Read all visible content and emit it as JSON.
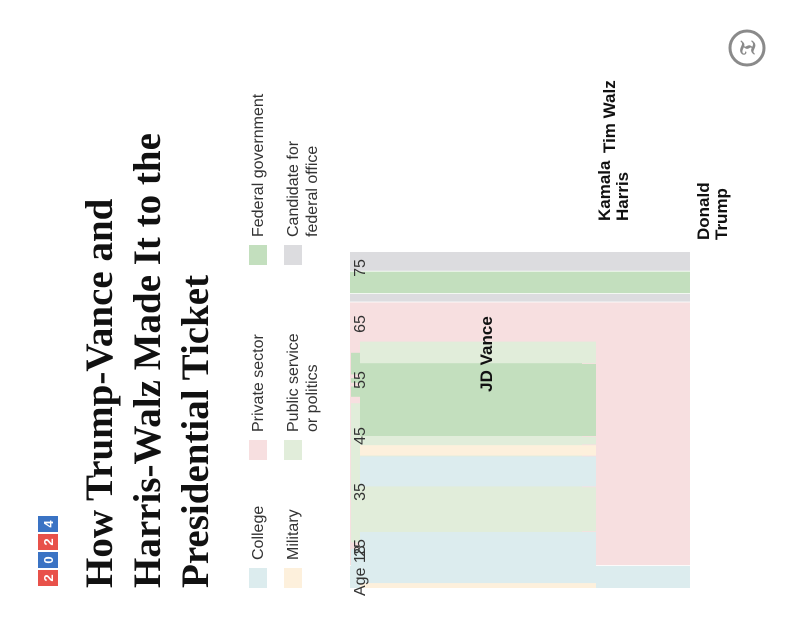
{
  "badge": {
    "digits": [
      "2",
      "0",
      "2",
      "4"
    ],
    "colors": [
      "#e8514a",
      "#3a73c4",
      "#e8514a",
      "#3a73c4"
    ]
  },
  "logo": {
    "icon": "nyt-logo-icon"
  },
  "title_lines": [
    "How Trump-Vance and",
    "Harris-Walz Made It to the",
    "Presidential Ticket"
  ],
  "legend": [
    {
      "key": "college",
      "lines": [
        "College"
      ],
      "color": "#dcecee"
    },
    {
      "key": "military",
      "lines": [
        "Military"
      ],
      "color": "#fdf0dc"
    },
    {
      "key": "private",
      "lines": [
        "Private sector"
      ],
      "color": "#f7dfe0"
    },
    {
      "key": "public",
      "lines": [
        "Public service",
        "or politics"
      ],
      "color": "#e1edda"
    },
    {
      "key": "federal",
      "lines": [
        "Federal government"
      ],
      "color": "#c3dfbe"
    },
    {
      "key": "candidate",
      "lines": [
        "Candidate for",
        "federal office"
      ],
      "color": "#dcdcdf"
    }
  ],
  "chart_data": {
    "type": "timeline",
    "title": "How Trump-Vance and Harris-Walz Made It to the Presidential Ticket",
    "axis": {
      "label_prefix": "Age",
      "ticks": [
        18,
        25,
        35,
        45,
        55,
        65,
        75
      ],
      "range": [
        18,
        78
      ]
    },
    "people": [
      {
        "name": "Donald Trump",
        "label_lines": [
          "Donald",
          "Trump"
        ],
        "segments": [
          {
            "start": 18,
            "end": 22,
            "category": "college"
          },
          {
            "start": 22,
            "end": 69,
            "category": "private"
          },
          {
            "start": 69,
            "end": 70.5,
            "category": "candidate"
          },
          {
            "start": 70.5,
            "end": 74.5,
            "category": "federal"
          },
          {
            "start": 74.5,
            "end": 78,
            "category": "candidate"
          }
        ]
      },
      {
        "name": "JD Vance",
        "label_lines": [
          "JD Vance"
        ],
        "segments": [
          {
            "start": 19,
            "end": 23,
            "category": "military"
          },
          {
            "start": 23,
            "end": 25,
            "category": "college"
          },
          {
            "start": 26,
            "end": 29,
            "category": "college"
          },
          {
            "start": 29,
            "end": 37.5,
            "category": "private"
          },
          {
            "start": 37.5,
            "end": 38.5,
            "category": "candidate"
          },
          {
            "start": 38.5,
            "end": 40,
            "category": "federal"
          }
        ]
      },
      {
        "name": "Kamala Harris",
        "label_lines": [
          "Kamala",
          "Harris"
        ],
        "segments": [
          {
            "start": 18,
            "end": 25,
            "category": "college"
          },
          {
            "start": 26,
            "end": 51,
            "category": "public"
          },
          {
            "start": 52,
            "end": 54,
            "category": "federal"
          },
          {
            "start": 54.5,
            "end": 55.5,
            "category": "federal"
          },
          {
            "start": 56,
            "end": 60,
            "category": "federal"
          }
        ]
      },
      {
        "name": "Tim Walz",
        "label_lines": [
          "Tim Walz"
        ],
        "segments": [
          {
            "start": 18,
            "end": 19,
            "category": "military"
          },
          {
            "start": 19,
            "end": 28,
            "category": "college"
          },
          {
            "start": 28,
            "end": 36,
            "category": "public"
          },
          {
            "start": 36,
            "end": 41.5,
            "category": "college"
          },
          {
            "start": 41.5,
            "end": 43.5,
            "category": "military"
          },
          {
            "start": 43.5,
            "end": 45,
            "category": "public"
          },
          {
            "start": 45,
            "end": 58,
            "category": "federal"
          },
          {
            "start": 58,
            "end": 62,
            "category": "public"
          }
        ]
      }
    ]
  }
}
